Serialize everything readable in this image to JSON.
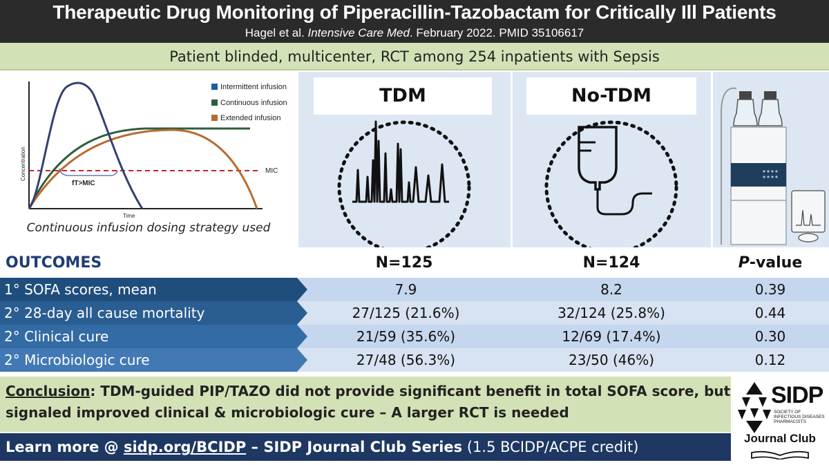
{
  "header": {
    "title": "Therapeutic Drug Monitoring of Piperacillin-Tazobactam for Critically Ill Patients",
    "citation_authors": "Hagel et al.",
    "citation_journal": "Intensive Care Med",
    "citation_rest": ". February 2022. PMID 35106617"
  },
  "design": "Patient blinded, multicenter, RCT among 254 inpatients with Sepsis",
  "graph": {
    "legend": [
      {
        "label": "Intermittent infusion",
        "color": "#1f5aa8"
      },
      {
        "label": "Continuous infusion",
        "color": "#2f5e3c"
      },
      {
        "label": "Extended infusion",
        "color": "#b86a2c"
      }
    ],
    "ylabel": "Concentration",
    "xlabel": "Time",
    "mic_label": "MIC",
    "ft_label": "fT>MIC",
    "caption": "Continuous infusion dosing strategy used"
  },
  "groups": {
    "tdm": "TDM",
    "notdm": "No-TDM"
  },
  "table": {
    "header": {
      "outcomes": "OUTCOMES",
      "n_tdm": "N=125",
      "n_notdm": "N=124",
      "p_prefix": "P",
      "p_suffix": "-value"
    },
    "rows": [
      {
        "label": "1° SOFA scores, mean",
        "tdm": "7.9",
        "notdm": "8.2",
        "p": "0.39"
      },
      {
        "label": "2° 28-day all cause mortality",
        "tdm": "27/125 (21.6%)",
        "notdm": "32/124 (25.8%)",
        "p": "0.44"
      },
      {
        "label": "2° Clinical cure",
        "tdm": "21/59 (35.6%)",
        "notdm": "12/69 (17.4%)",
        "p": "0.30"
      },
      {
        "label": "2° Microbiologic cure",
        "tdm": "27/48 (56.3%)",
        "notdm": "23/50 (46%)",
        "p": "0.12"
      }
    ]
  },
  "conclusion": {
    "label": "Conclusion",
    "text": ": TDM-guided PIP/TAZO did not provide significant benefit in total SOFA score, but signaled improved clinical & microbiologic cure – A larger RCT is needed"
  },
  "footer": {
    "prefix": "Learn more @ ",
    "link": "sidp.org/BCIDP",
    "series": " – SIDP Journal Club Series",
    "credit": " (1.5 BCIDP/ACPE credit)"
  },
  "logo": {
    "name": "SIDP",
    "society": "SOCIETY OF INFECTIOUS DISEASES PHARMACISTS",
    "subtitle": "Journal Club"
  }
}
